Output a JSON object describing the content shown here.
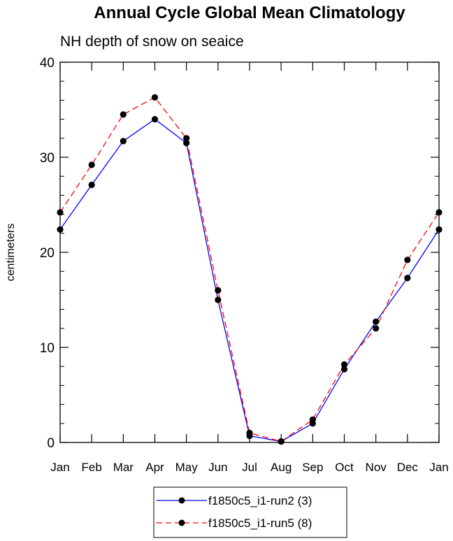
{
  "chart_data": {
    "type": "line",
    "title": "Annual Cycle Global Mean Climatology",
    "subtitle": "NH depth of snow on seaice",
    "xlabel": "",
    "ylabel": "centimeters",
    "categories": [
      "Jan",
      "Feb",
      "Mar",
      "Apr",
      "May",
      "Jun",
      "Jul",
      "Aug",
      "Sep",
      "Oct",
      "Nov",
      "Dec",
      "Jan"
    ],
    "ylim": [
      0,
      40
    ],
    "yticks": [
      0,
      10,
      20,
      30,
      40
    ],
    "yticks_labels": [
      "0",
      "10",
      "20",
      "30",
      "40"
    ],
    "grid": false,
    "legend_position": "bottom",
    "series": [
      {
        "name": "f1850c5_i1-run2 (3)",
        "color": "#0000ff",
        "dash": "solid",
        "values": [
          22.4,
          27.1,
          31.7,
          34.0,
          31.5,
          15.0,
          0.7,
          0.1,
          2.0,
          7.7,
          12.7,
          17.3,
          22.4
        ]
      },
      {
        "name": "f1850c5_i1-run5 (8)",
        "color": "#ff0000",
        "dash": "dashed",
        "values": [
          24.2,
          29.2,
          34.5,
          36.3,
          32.0,
          16.0,
          1.0,
          0.1,
          2.4,
          8.2,
          12.0,
          19.2,
          24.2
        ]
      }
    ]
  }
}
